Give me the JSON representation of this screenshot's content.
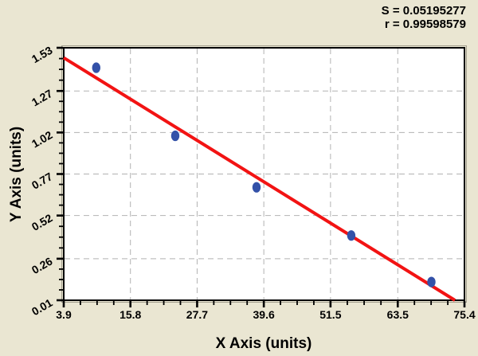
{
  "stats": {
    "s_line": "S = 0.05195277",
    "r_line": "r = 0.99598579"
  },
  "chart_data": {
    "type": "scatter",
    "title": "",
    "xlabel": "X Axis (units)",
    "ylabel": "Y Axis (units)",
    "annotations": [
      "S = 0.05195277",
      "r = 0.99598579"
    ],
    "xlim": [
      3.9,
      75.4
    ],
    "ylim": [
      0.01,
      1.53
    ],
    "x_ticks": [
      3.9,
      15.8,
      27.7,
      39.6,
      51.5,
      63.5,
      75.4
    ],
    "x_tick_labels": [
      "3.9",
      "15.8",
      "27.7",
      "39.6",
      "51.5",
      "63.5",
      "75.4"
    ],
    "y_ticks": [
      0.01,
      0.26,
      0.52,
      0.77,
      1.02,
      1.27,
      1.53
    ],
    "y_tick_labels": [
      "0.01",
      "0.26",
      "0.52",
      "0.77",
      "1.02",
      "1.27",
      "1.53"
    ],
    "minor_ticks_between_majors": 3,
    "grid": "dashed",
    "legend": "none",
    "points": [
      [
        9.7,
        1.41
      ],
      [
        23.8,
        1.0
      ],
      [
        38.3,
        0.69
      ],
      [
        55.2,
        0.4
      ],
      [
        69.5,
        0.12
      ]
    ],
    "fit_line": {
      "x1": 3.9,
      "y1": 1.47,
      "x2": 73.7,
      "y2": 0.01
    },
    "S": 0.05195277,
    "r": 0.99598579,
    "colors": {
      "background": "#eae6d2",
      "plot_background": "#ffffff",
      "frame": "#000000",
      "frame_outer": "#a39f8e",
      "grid": "#b2b2b2",
      "point": "#3351a8",
      "fit_line": "#f21313",
      "text": "#000000"
    }
  }
}
